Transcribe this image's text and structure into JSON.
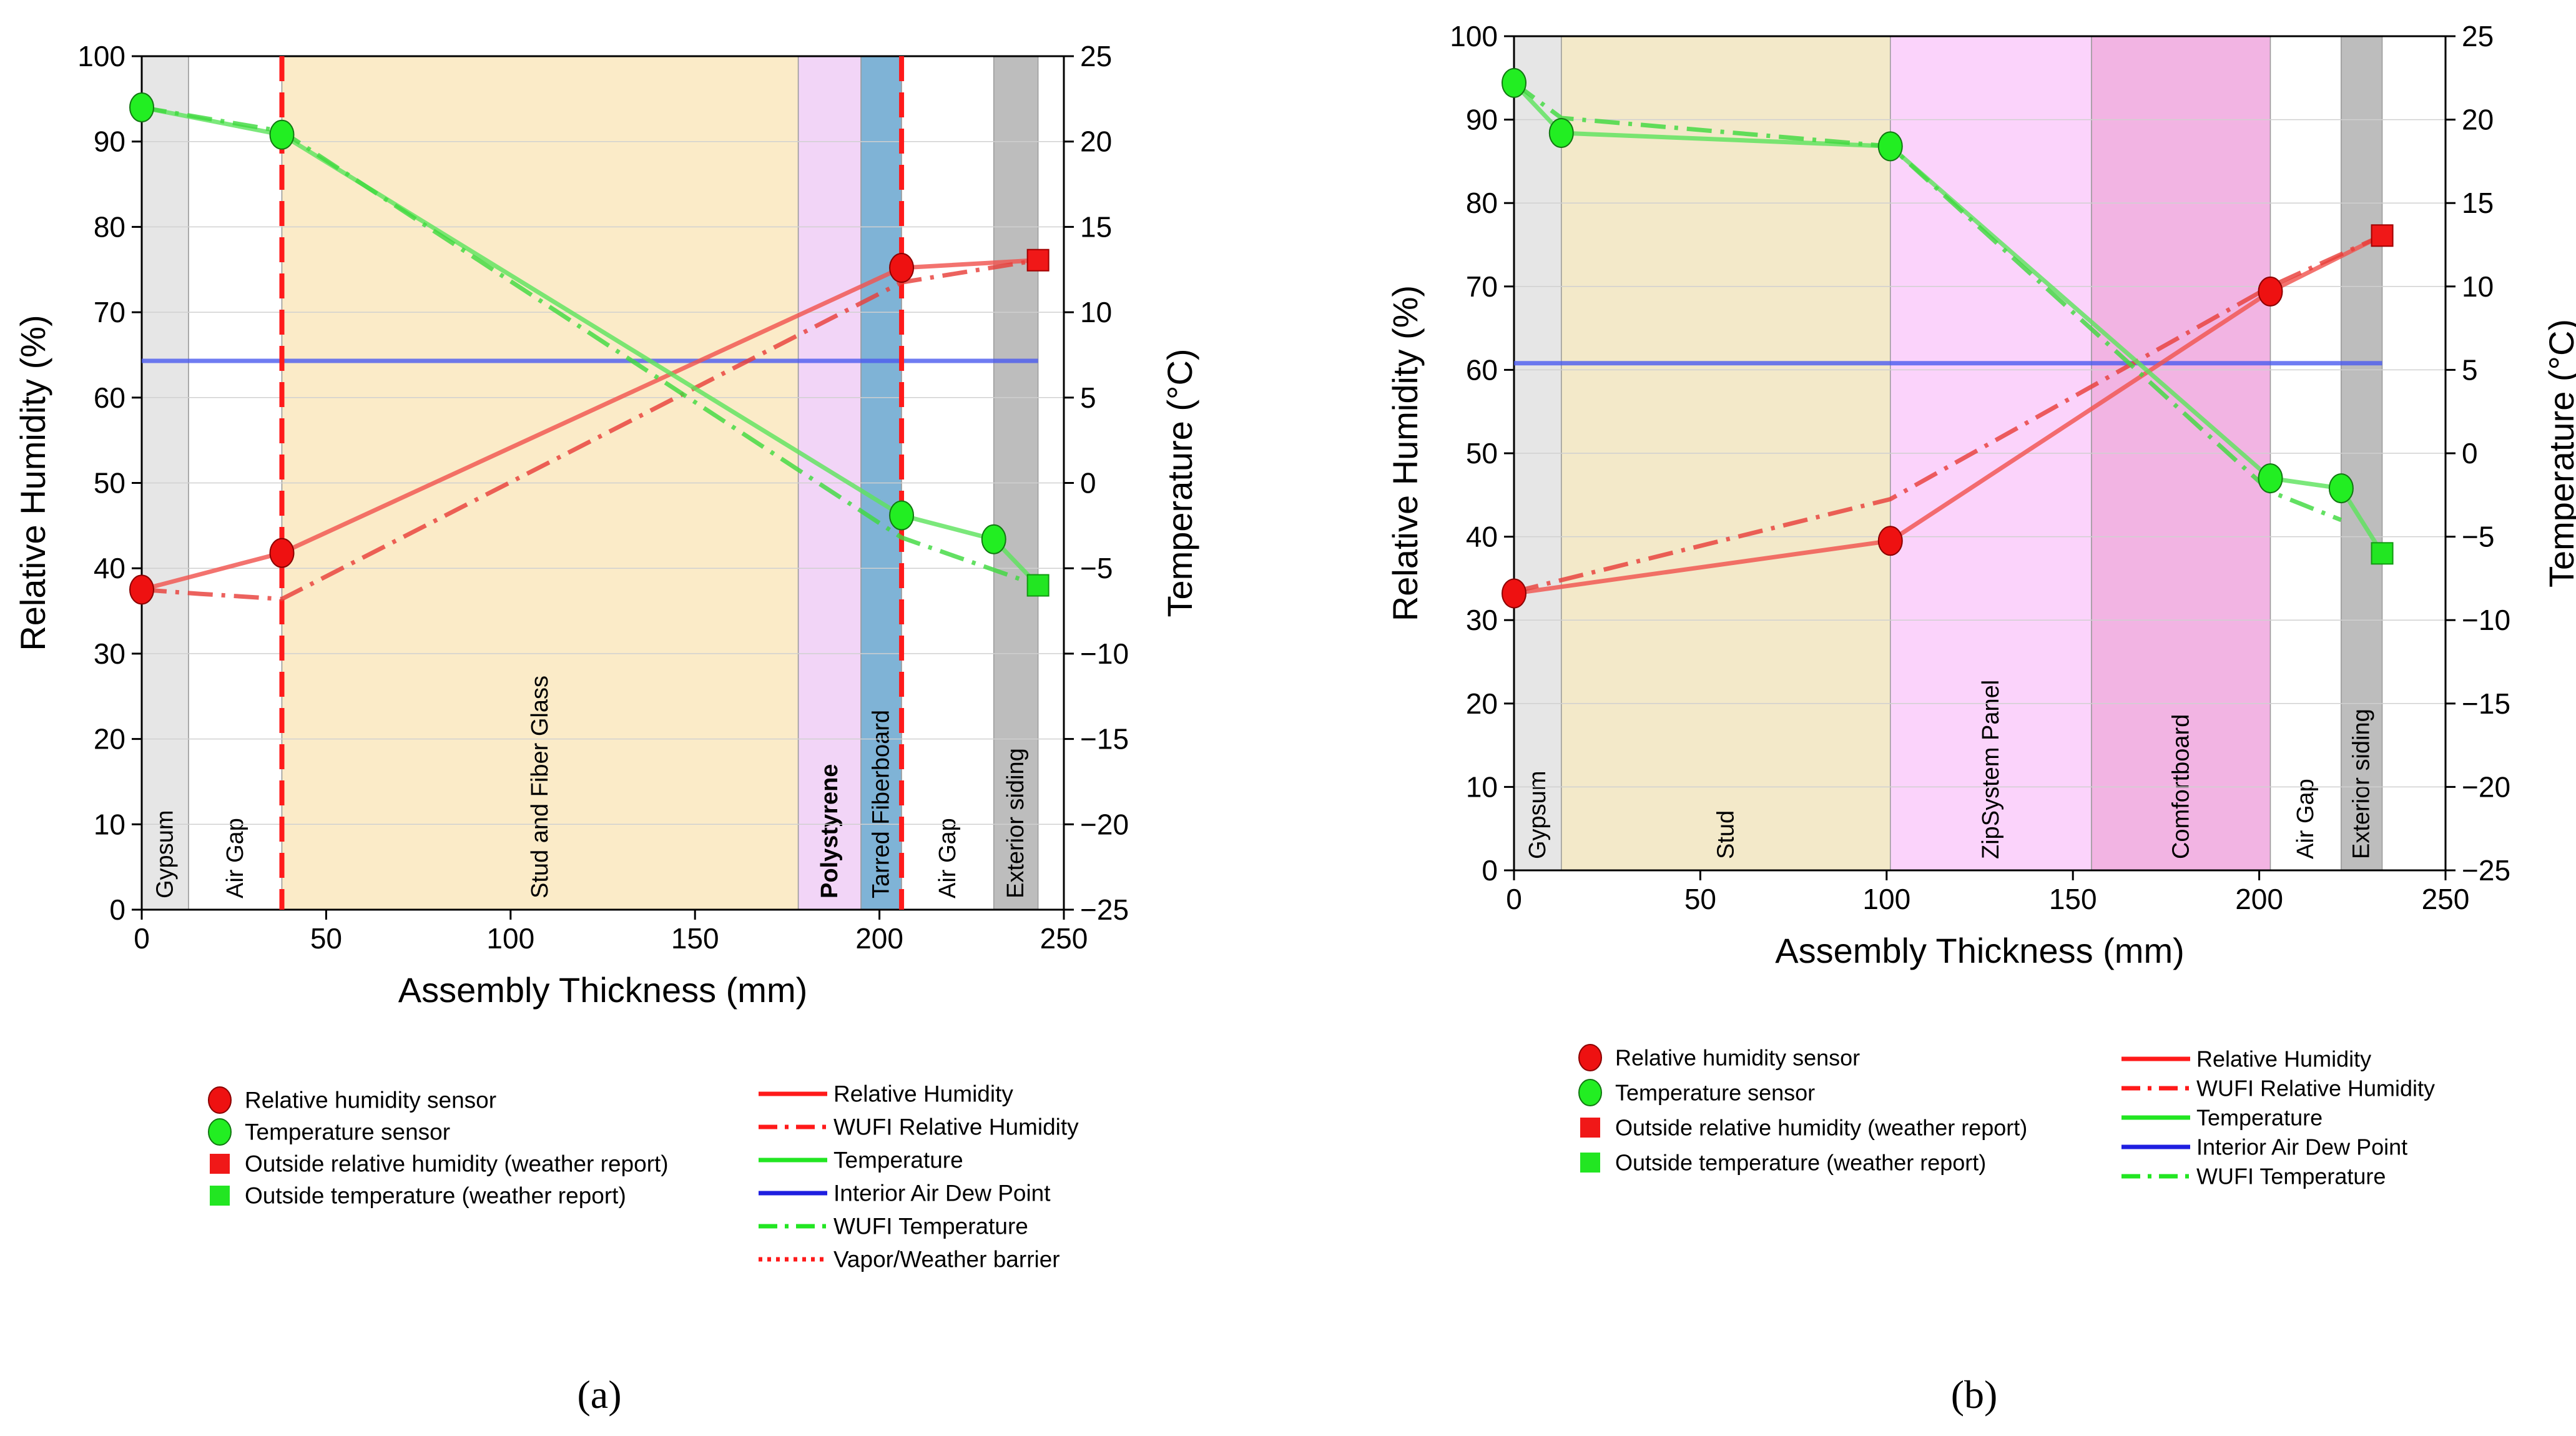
{
  "figure": {
    "letters": [
      "(a)",
      "(b)"
    ]
  },
  "chart_data": [
    {
      "type": "line",
      "panel": "(a)",
      "xlabel": "Assembly Thickness (mm)",
      "ylabel": "Relative Humidity (%)",
      "y2label": "Temperature (°C)",
      "xlim": [
        0,
        250
      ],
      "ylim": [
        0,
        100
      ],
      "y2lim": [
        -25,
        25
      ],
      "xticks": [
        0,
        50,
        100,
        150,
        200,
        250
      ],
      "yticks": [
        0,
        10,
        20,
        30,
        40,
        50,
        60,
        70,
        80,
        90,
        100
      ],
      "y2ticks": [
        -25,
        -20,
        -15,
        -10,
        -5,
        0,
        5,
        10,
        15,
        20,
        25
      ],
      "layers": [
        {
          "label": "Gypsum",
          "x0": 0,
          "x1": 12.7,
          "color": "#e6e6e6",
          "bold": false
        },
        {
          "label": "Air Gap",
          "x0": 12.7,
          "x1": 38,
          "color": "#ffffff",
          "bold": false
        },
        {
          "label": "Stud and Fiber Glass",
          "x0": 38,
          "x1": 178,
          "color": "#fbebc8",
          "bold": false
        },
        {
          "label": "Polystyrene",
          "x0": 178,
          "x1": 195,
          "color": "#f2d5f7",
          "bold": true
        },
        {
          "label": "Tarred Fiberboard",
          "x0": 195,
          "x1": 206,
          "color": "#7fb3d6",
          "bold": false
        },
        {
          "label": "Air Gap",
          "x0": 206,
          "x1": 231,
          "color": "#ffffff",
          "bold": false
        },
        {
          "label": "Exterior siding",
          "x0": 231,
          "x1": 243,
          "color": "#bdbdbd",
          "bold": false
        }
      ],
      "barriers_x": [
        38,
        206
      ],
      "dew_point_rh": 64.3,
      "series": [
        {
          "name": "Relative Humidity",
          "axis": "y",
          "style": "solid",
          "color": "#f0544f",
          "x": [
            0,
            38,
            206,
            243
          ],
          "values": [
            37.5,
            41.8,
            75.2,
            76.1
          ]
        },
        {
          "name": "WUFI Relative Humidity",
          "axis": "y",
          "style": "dashdot",
          "color": "#e8403b",
          "x": [
            0,
            16,
            38,
            206,
            243
          ],
          "values": [
            37.5,
            37.0,
            36.4,
            73.5,
            76.1
          ]
        },
        {
          "name": "Temperature",
          "axis": "y2",
          "style": "solid",
          "color": "#5ee35e",
          "x": [
            0,
            38,
            206,
            231,
            243
          ],
          "values": [
            22.0,
            20.4,
            -1.9,
            -3.3,
            -6.0
          ]
        },
        {
          "name": "WUFI Temperature",
          "axis": "y2",
          "style": "dashdot",
          "color": "#3fd93f",
          "x": [
            0,
            38,
            206,
            243
          ],
          "values": [
            22.0,
            20.6,
            -3.2,
            -6.0
          ]
        }
      ],
      "rh_sensors": {
        "x": [
          0,
          38,
          206
        ],
        "values": [
          37.5,
          41.8,
          75.2
        ]
      },
      "temp_sensors": {
        "x": [
          0,
          38,
          206,
          231
        ],
        "values": [
          22.0,
          20.4,
          -1.9,
          -3.3
        ]
      },
      "outside_rh": {
        "x": 243,
        "value": 76.1
      },
      "outside_temp": {
        "x": 243,
        "value": -6.0
      },
      "legend": {
        "markers": [
          "Relative humidity sensor",
          "Temperature sensor",
          "Outside relative humidity (weather report)",
          "Outside temperature (weather report)"
        ],
        "lines": [
          "Relative Humidity",
          "WUFI Relative Humidity",
          "Temperature",
          "Interior Air Dew Point",
          "WUFI Temperature",
          "Vapor/Weather barrier"
        ]
      }
    },
    {
      "type": "line",
      "panel": "(b)",
      "xlabel": "Assembly Thickness (mm)",
      "ylabel": "Relative Humidity (%)",
      "y2label": "Temperature (°C)",
      "xlim": [
        0,
        250
      ],
      "ylim": [
        0,
        100
      ],
      "y2lim": [
        -25,
        25
      ],
      "xticks": [
        0,
        50,
        100,
        150,
        200,
        250
      ],
      "yticks": [
        0,
        10,
        20,
        30,
        40,
        50,
        60,
        70,
        80,
        90,
        100
      ],
      "y2ticks": [
        -25,
        -20,
        -15,
        -10,
        -5,
        0,
        5,
        10,
        15,
        20,
        25
      ],
      "layers": [
        {
          "label": "Gypsum",
          "x0": 0,
          "x1": 12.7,
          "color": "#e6e6e6",
          "bold": false
        },
        {
          "label": "Stud",
          "x0": 12.7,
          "x1": 101,
          "color": "#f3e9c9",
          "bold": false
        },
        {
          "label": "ZipSystem Panel",
          "x0": 101,
          "x1": 155,
          "color": "#fbd3fb",
          "bold": false
        },
        {
          "label": "Comfortboard",
          "x0": 155,
          "x1": 203,
          "color": "#f2b4e3",
          "bold": false
        },
        {
          "label": "Air Gap",
          "x0": 203,
          "x1": 222,
          "color": "#ffffff",
          "bold": false
        },
        {
          "label": "Exterior siding",
          "x0": 222,
          "x1": 233,
          "color": "#bdbdbd",
          "bold": false
        }
      ],
      "barriers_x": [],
      "dew_point_rh": 60.8,
      "series": [
        {
          "name": "Relative Humidity",
          "axis": "y",
          "style": "solid",
          "color": "#f0544f",
          "x": [
            0,
            101,
            203,
            233
          ],
          "values": [
            33.2,
            39.5,
            69.4,
            76.1
          ]
        },
        {
          "name": "WUFI Relative Humidity",
          "axis": "y",
          "style": "dashdot",
          "color": "#e8403b",
          "x": [
            0,
            101,
            203,
            233
          ],
          "values": [
            33.4,
            44.5,
            70.0,
            76.1
          ]
        },
        {
          "name": "Temperature",
          "axis": "y2",
          "style": "solid",
          "color": "#5ee35e",
          "x": [
            0,
            12.7,
            101,
            203,
            222,
            233
          ],
          "values": [
            22.2,
            19.2,
            18.4,
            -1.5,
            -2.1,
            -6.0
          ]
        },
        {
          "name": "WUFI Temperature",
          "axis": "y2",
          "style": "dashdot",
          "color": "#3fd93f",
          "x": [
            0,
            12.7,
            101,
            203,
            222
          ],
          "values": [
            22.2,
            20.1,
            18.4,
            -2.3,
            -4.0
          ]
        }
      ],
      "rh_sensors": {
        "x": [
          0,
          101,
          203
        ],
        "values": [
          33.2,
          39.5,
          69.4
        ]
      },
      "temp_sensors": {
        "x": [
          0,
          12.7,
          101,
          203,
          222
        ],
        "values": [
          22.2,
          19.2,
          18.4,
          -1.5,
          -2.1
        ]
      },
      "outside_rh": {
        "x": 233,
        "value": 76.1
      },
      "outside_temp": {
        "x": 233,
        "value": -6.0
      },
      "legend": {
        "markers": [
          "Relative humidity sensor",
          "Temperature sensor",
          "Outside relative humidity (weather report)",
          "Outside temperature (weather report)"
        ],
        "lines": [
          "Relative Humidity",
          "WUFI Relative Humidity",
          "Temperature",
          "Interior Air Dew Point",
          "WUFI Temperature"
        ]
      }
    }
  ]
}
